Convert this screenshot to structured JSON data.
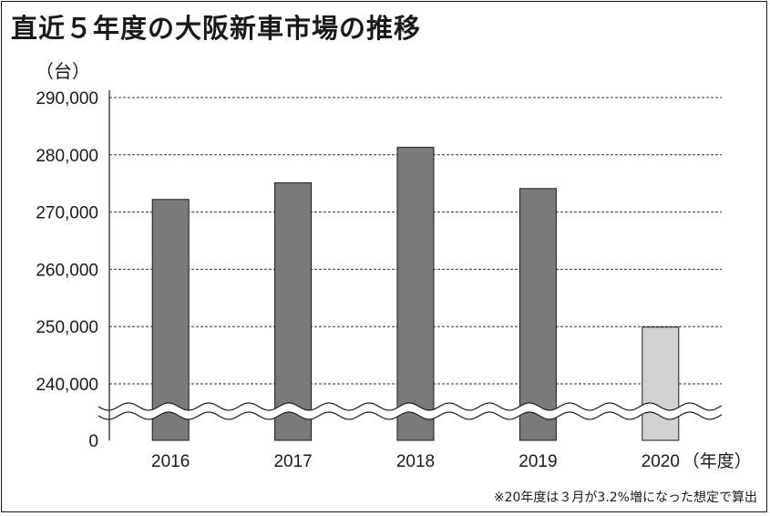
{
  "title": "直近５年度の大阪新車市場の推移",
  "note": "※20年度は３月が3.2%増になった想定で算出",
  "colors": {
    "bar": "#7a7a7a",
    "bar_estimate": "#d2d2d2",
    "stroke": "#1a1a1a"
  },
  "chart_data": {
    "type": "bar",
    "title": "直近５年度の大阪新車市場の推移",
    "ylabel": "（台）",
    "xlabel_suffix": "（年度）",
    "categories": [
      "2016",
      "2017",
      "2018",
      "2019",
      "2020"
    ],
    "values": [
      272200,
      275100,
      281300,
      274100,
      249900
    ],
    "estimated": [
      false,
      false,
      false,
      false,
      true
    ],
    "ylim": [
      0,
      290000
    ],
    "broken_axis": true,
    "axis_break_below": 235000,
    "y_ticks": [
      290000,
      280000,
      270000,
      260000,
      250000,
      240000,
      0
    ],
    "y_tick_labels": [
      "290,000",
      "280,000",
      "270,000",
      "260,000",
      "250,000",
      "240,000",
      "0"
    ],
    "grid": "dashed horizontal",
    "legend": "none"
  }
}
